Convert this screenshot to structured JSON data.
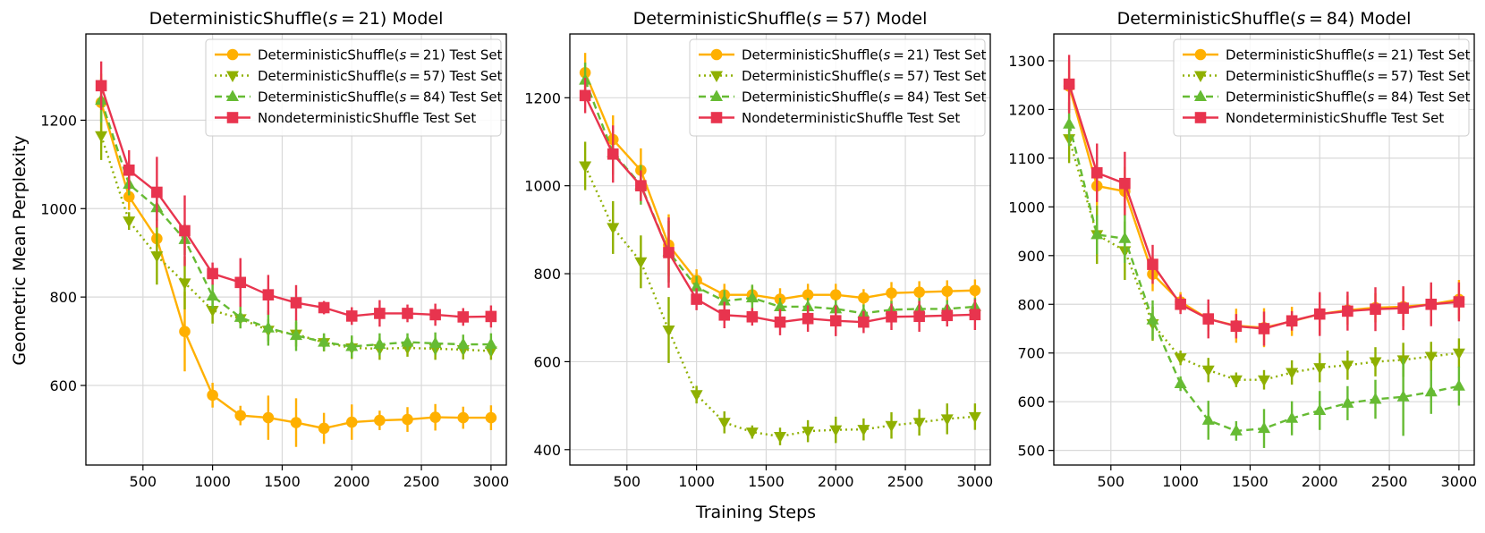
{
  "figure": {
    "xlabel_shared": "Training Steps",
    "ylabel_shared": "Geometric Mean Perplexity"
  },
  "legend_labels": [
    "DeterministicShuffle($s=21$) Test Set",
    "DeterministicShuffle($s=57$) Test Set",
    "DeterministicShuffle($s=84$) Test Set",
    "NondeterministicShuffle Test Set"
  ],
  "chart_data": [
    {
      "type": "line",
      "title": "DeterministicShuffle($s=21$) Model",
      "x": [
        200,
        400,
        600,
        800,
        1000,
        1200,
        1400,
        1600,
        1800,
        2000,
        2200,
        2400,
        2600,
        2800,
        3000
      ],
      "xticks": [
        500,
        1000,
        1500,
        2000,
        2500,
        3000
      ],
      "yticks": [
        600,
        800,
        1000,
        1200
      ],
      "xlim": [
        90,
        3110
      ],
      "ylim": [
        420,
        1395
      ],
      "grid": true,
      "legend": "top-right",
      "series": [
        {
          "name": "DeterministicShuffle($s=21$) Test Set",
          "color": "#FFB000",
          "marker": "circle",
          "dash": "solid",
          "values": [
            1240,
            1027,
            932,
            722,
            578,
            532,
            527,
            516,
            503,
            517,
            521,
            523,
            528,
            527,
            527
          ],
          "errors": [
            65,
            30,
            45,
            90,
            28,
            22,
            50,
            55,
            35,
            40,
            22,
            28,
            30,
            25,
            28
          ]
        },
        {
          "name": "DeterministicShuffle($s=57$) Test Set",
          "color": "#8FB000",
          "marker": "triangle-down",
          "dash": "dotted",
          "values": [
            1165,
            972,
            893,
            832,
            770,
            751,
            725,
            716,
            697,
            685,
            683,
            685,
            683,
            681,
            678
          ],
          "errors": [
            55,
            20,
            65,
            60,
            30,
            20,
            25,
            28,
            20,
            25,
            25,
            20,
            25,
            22,
            20
          ]
        },
        {
          "name": "DeterministicShuffle($s=84$) Test Set",
          "color": "#66BB33",
          "marker": "triangle-up",
          "dash": "dashed",
          "values": [
            1245,
            1055,
            1002,
            930,
            802,
            754,
            730,
            713,
            698,
            688,
            693,
            698,
            695,
            693,
            693
          ],
          "errors": [
            50,
            25,
            30,
            35,
            28,
            25,
            40,
            35,
            20,
            25,
            25,
            20,
            25,
            22,
            25
          ]
        },
        {
          "name": "NondeterministicShuffle Test Set",
          "color": "#E8344E",
          "marker": "square",
          "dash": "solid",
          "values": [
            1278,
            1087,
            1037,
            950,
            853,
            833,
            805,
            787,
            776,
            757,
            763,
            763,
            760,
            755,
            756
          ],
          "errors": [
            55,
            45,
            80,
            80,
            25,
            55,
            45,
            40,
            15,
            20,
            30,
            20,
            25,
            20,
            25
          ]
        }
      ]
    },
    {
      "type": "line",
      "title": "DeterministicShuffle($s=57$) Model",
      "x": [
        200,
        400,
        600,
        800,
        1000,
        1200,
        1400,
        1600,
        1800,
        2000,
        2200,
        2400,
        2600,
        2800,
        3000
      ],
      "xticks": [
        500,
        1000,
        1500,
        2000,
        2500,
        3000
      ],
      "yticks": [
        400,
        600,
        800,
        1000,
        1200
      ],
      "xlim": [
        90,
        3110
      ],
      "ylim": [
        365,
        1345
      ],
      "grid": true,
      "legend": "top-right",
      "series": [
        {
          "name": "DeterministicShuffle($s=21$) Test Set",
          "color": "#FFB000",
          "marker": "circle",
          "dash": "solid",
          "values": [
            1257,
            1105,
            1035,
            865,
            785,
            752,
            752,
            742,
            752,
            752,
            745,
            756,
            758,
            760,
            762
          ],
          "errors": [
            45,
            55,
            50,
            70,
            25,
            25,
            20,
            25,
            25,
            25,
            20,
            25,
            25,
            25,
            25
          ]
        },
        {
          "name": "DeterministicShuffle($s=57$) Test Set",
          "color": "#8FB000",
          "marker": "triangle-down",
          "dash": "dotted",
          "values": [
            1045,
            905,
            827,
            672,
            525,
            462,
            440,
            430,
            442,
            445,
            446,
            455,
            462,
            470,
            475
          ],
          "errors": [
            55,
            60,
            60,
            75,
            20,
            25,
            15,
            20,
            25,
            30,
            25,
            30,
            30,
            35,
            30
          ]
        },
        {
          "name": "DeterministicShuffle($s=84$) Test Set",
          "color": "#66BB33",
          "marker": "triangle-up",
          "dash": "dashed",
          "values": [
            1240,
            1075,
            1002,
            850,
            770,
            738,
            745,
            725,
            725,
            720,
            710,
            718,
            720,
            720,
            725
          ],
          "errors": [
            40,
            50,
            45,
            70,
            25,
            25,
            30,
            20,
            20,
            20,
            20,
            20,
            25,
            20,
            20
          ]
        },
        {
          "name": "NondeterministicShuffle Test Set",
          "color": "#E8344E",
          "marker": "square",
          "dash": "solid",
          "values": [
            1205,
            1072,
            1000,
            848,
            742,
            706,
            702,
            690,
            698,
            693,
            690,
            702,
            703,
            705,
            707
          ],
          "errors": [
            40,
            65,
            35,
            80,
            25,
            30,
            20,
            30,
            30,
            35,
            25,
            30,
            35,
            25,
            35
          ]
        }
      ]
    },
    {
      "type": "line",
      "title": "DeterministicShuffle($s=84$) Model",
      "x": [
        200,
        400,
        600,
        800,
        1000,
        1200,
        1400,
        1600,
        1800,
        2000,
        2200,
        2400,
        2600,
        2800,
        3000
      ],
      "xticks": [
        500,
        1000,
        1500,
        2000,
        2500,
        3000
      ],
      "yticks": [
        500,
        600,
        700,
        800,
        900,
        1000,
        1100,
        1200,
        1300
      ],
      "xlim": [
        90,
        3110
      ],
      "ylim": [
        470,
        1355
      ],
      "grid": true,
      "legend": "top-right",
      "series": [
        {
          "name": "DeterministicShuffle($s=21$) Test Set",
          "color": "#FFB000",
          "marker": "circle",
          "dash": "solid",
          "values": [
            1248,
            1043,
            1032,
            862,
            805,
            770,
            756,
            752,
            765,
            780,
            788,
            793,
            795,
            800,
            810
          ],
          "errors": [
            50,
            40,
            50,
            35,
            20,
            25,
            35,
            40,
            30,
            40,
            30,
            30,
            40,
            40,
            40
          ]
        },
        {
          "name": "DeterministicShuffle($s=57$) Test Set",
          "color": "#8FB000",
          "marker": "triangle-down",
          "dash": "dotted",
          "values": [
            1140,
            943,
            910,
            760,
            690,
            665,
            645,
            645,
            660,
            670,
            675,
            682,
            686,
            693,
            700
          ],
          "errors": [
            50,
            60,
            60,
            35,
            15,
            25,
            15,
            20,
            25,
            30,
            30,
            30,
            35,
            30,
            30
          ]
        },
        {
          "name": "DeterministicShuffle($s=84$) Test Set",
          "color": "#66BB33",
          "marker": "triangle-up",
          "dash": "dashed",
          "values": [
            1170,
            943,
            935,
            768,
            637,
            562,
            540,
            545,
            566,
            582,
            597,
            605,
            610,
            620,
            632
          ],
          "errors": [
            45,
            40,
            50,
            40,
            15,
            40,
            20,
            40,
            35,
            40,
            35,
            40,
            80,
            45,
            40
          ]
        },
        {
          "name": "NondeterministicShuffle Test Set",
          "color": "#E8344E",
          "marker": "square",
          "dash": "solid",
          "values": [
            1252,
            1070,
            1048,
            882,
            800,
            770,
            755,
            750,
            766,
            780,
            786,
            790,
            792,
            800,
            805
          ],
          "errors": [
            60,
            60,
            65,
            40,
            20,
            40,
            25,
            35,
            20,
            45,
            40,
            45,
            45,
            45,
            40
          ]
        }
      ]
    }
  ]
}
